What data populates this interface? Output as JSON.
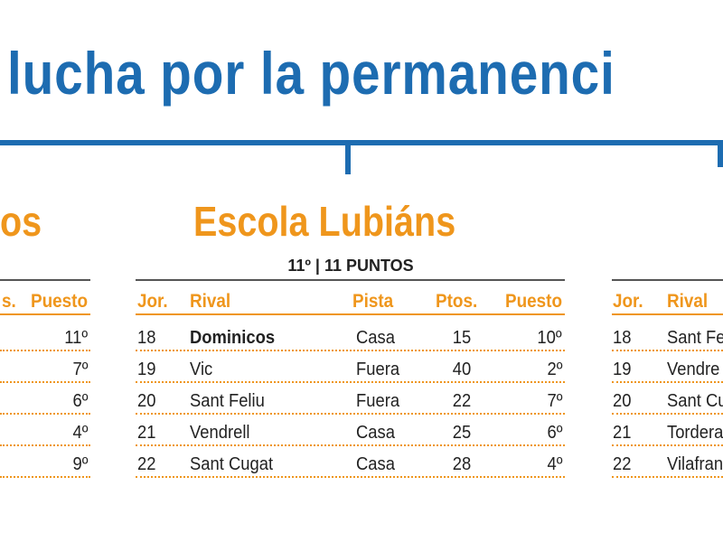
{
  "header": {
    "title": "lucha por la permanenci"
  },
  "panels": [
    {
      "team": "os",
      "columns": [
        "s.",
        "Puesto"
      ],
      "rows": [
        [
          "11º"
        ],
        [
          "7º"
        ],
        [
          "6º"
        ],
        [
          "4º"
        ],
        [
          "9º"
        ]
      ]
    },
    {
      "team": "Escola Lubiáns",
      "subtitle": "11º | 11 PUNTOS",
      "columns": [
        "Jor.",
        "Rival",
        "Pista",
        "Ptos.",
        "Puesto"
      ],
      "rows": [
        [
          "18",
          "Dominicos",
          "Casa",
          "15",
          "10º"
        ],
        [
          "19",
          "Vic",
          "Fuera",
          "40",
          "2º"
        ],
        [
          "20",
          "Sant Feliu",
          "Fuera",
          "22",
          "7º"
        ],
        [
          "21",
          "Vendrell",
          "Casa",
          "25",
          "6º"
        ],
        [
          "22",
          "Sant Cugat",
          "Casa",
          "28",
          "4º"
        ]
      ]
    },
    {
      "columns": [
        "Jor.",
        "Rival"
      ],
      "rows": [
        [
          "18",
          "Sant Fe"
        ],
        [
          "19",
          "Vendre"
        ],
        [
          "20",
          "Sant Cu"
        ],
        [
          "21",
          "Tordera"
        ],
        [
          "22",
          "Vilafran"
        ]
      ]
    }
  ]
}
